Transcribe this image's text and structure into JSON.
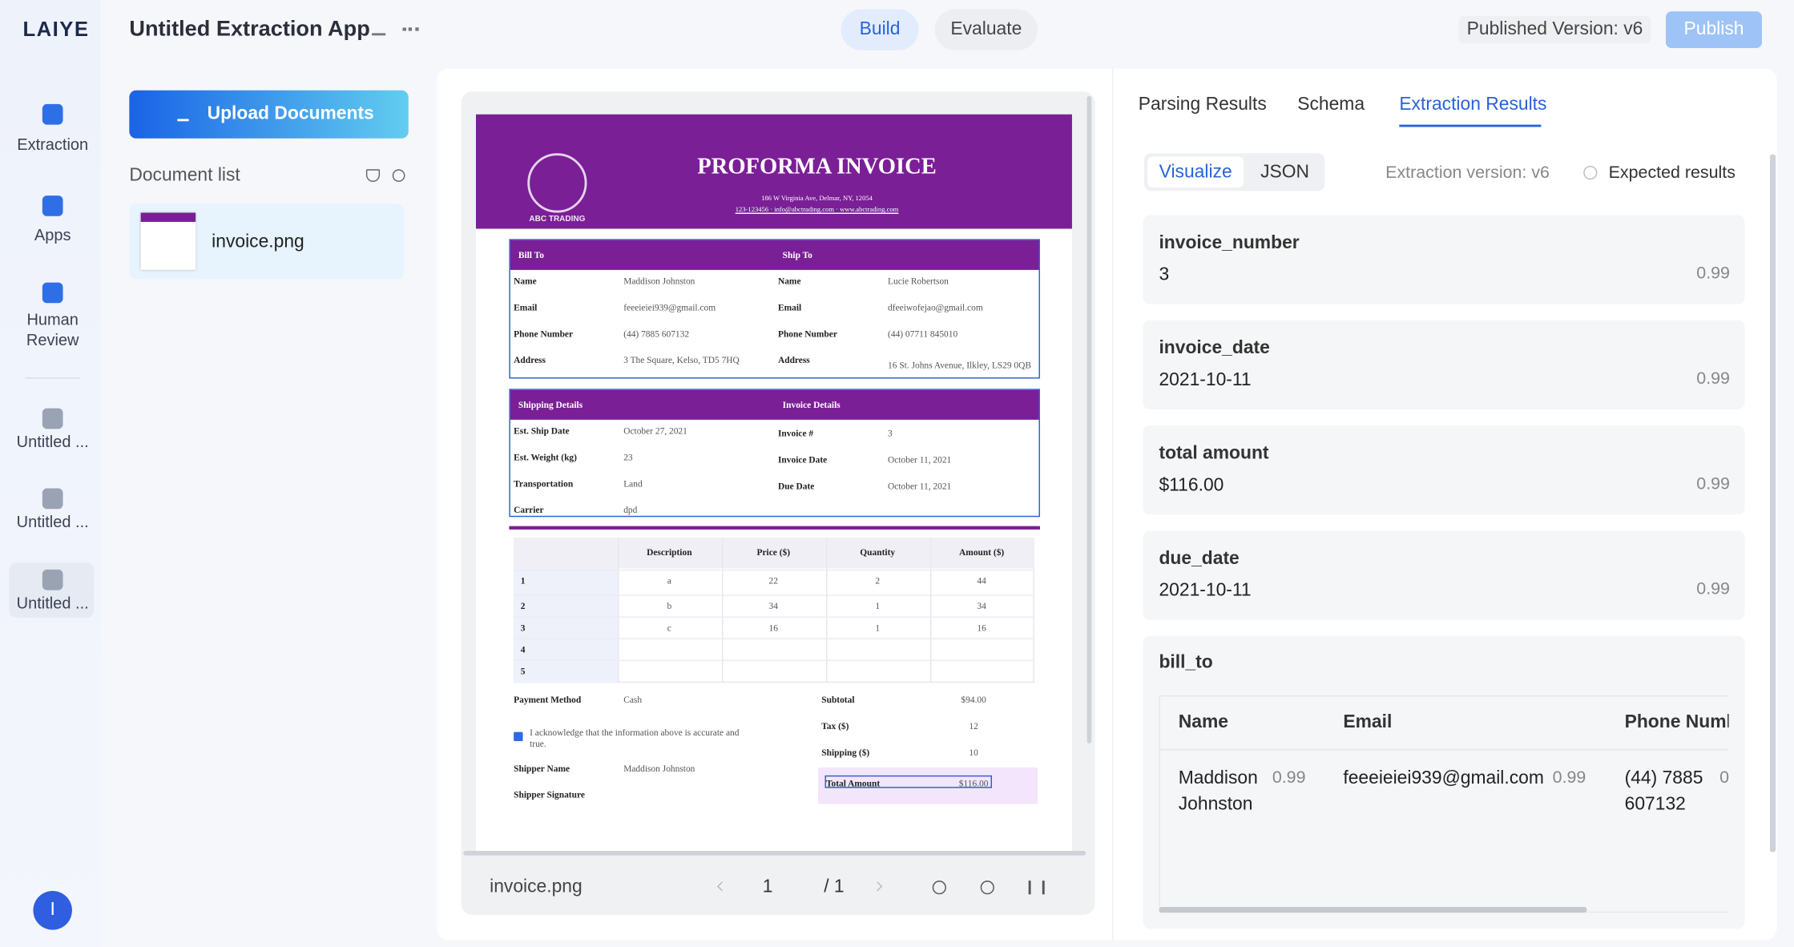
{
  "sidebar": {
    "logo": "LAIYE",
    "nav": [
      "Extraction",
      "Apps",
      "Human Review",
      "Untitled ...",
      "Untitled ...",
      "Untitled ..."
    ],
    "avatar": "I"
  },
  "header": {
    "title": "Untitled Extraction App",
    "tabs": [
      "Build",
      "Evaluate"
    ],
    "published_version": "Published Version: v6",
    "publish": "Publish"
  },
  "documents": {
    "upload": "Upload Documents",
    "list_title": "Document list",
    "items": [
      "invoice.png"
    ]
  },
  "viewer": {
    "filename": "invoice.png",
    "page": "1",
    "total": "/ 1"
  },
  "invoice": {
    "logo_text": "ABC TRADING",
    "title": "PROFORMA INVOICE",
    "address": "186 W Virginia Ave, Delmar, NY, 12054",
    "contact": "123-123456 · info@abctrading.com · www.abctrading.com",
    "bill_to": {
      "heading": "Bill To",
      "rows": [
        [
          "Name",
          "Maddison Johnston"
        ],
        [
          "Email",
          "feeeieiei939@gmail.com"
        ],
        [
          "Phone Number",
          "(44) 7885 607132"
        ],
        [
          "Address",
          "3 The Square, Kelso, TD5 7HQ"
        ]
      ]
    },
    "ship_to": {
      "heading": "Ship To",
      "rows": [
        [
          "Name",
          "Lucie Robertson"
        ],
        [
          "Email",
          "dfeeiwofejao@gmail.com"
        ],
        [
          "Phone Number",
          "(44) 07711 845010"
        ],
        [
          "Address",
          "16 St. Johns Avenue, Ilkley, LS29 0QB"
        ]
      ]
    },
    "shipping": {
      "heading": "Shipping Details",
      "rows": [
        [
          "Est. Ship Date",
          "October 27, 2021"
        ],
        [
          "Est. Weight (kg)",
          "23"
        ],
        [
          "Transportation",
          "Land"
        ],
        [
          "Carrier",
          "dpd"
        ]
      ]
    },
    "details": {
      "heading": "Invoice Details",
      "rows": [
        [
          "Invoice #",
          "3"
        ],
        [
          "Invoice Date",
          "October 11, 2021"
        ],
        [
          "Due Date",
          "October 11, 2021"
        ]
      ]
    },
    "items": {
      "columns": [
        "Description",
        "Price ($)",
        "Quantity",
        "Amount ($)"
      ],
      "rows": [
        [
          "1",
          "a",
          "22",
          "2",
          "44"
        ],
        [
          "2",
          "b",
          "34",
          "1",
          "34"
        ],
        [
          "3",
          "c",
          "16",
          "1",
          "16"
        ],
        [
          "4"
        ],
        [
          "5"
        ]
      ]
    },
    "payment": [
      "Payment Method",
      "Cash"
    ],
    "acknowledgement": "I acknowledge that the information above is accurate and true.",
    "shipper_name": [
      "Shipper Name",
      "Maddison Johnston"
    ],
    "shipper_signature": "Shipper Signature",
    "totals": [
      [
        "Subtotal",
        "$94.00"
      ],
      [
        "Tax ($)",
        "12"
      ],
      [
        "Shipping ($)",
        "10"
      ],
      [
        "Total Amount",
        "$116.00"
      ]
    ]
  },
  "results": {
    "tabs": [
      "Parsing Results",
      "Schema",
      "Extraction Results"
    ],
    "view_tabs": [
      "Visualize",
      "JSON"
    ],
    "version": "Extraction version: v6",
    "expected": "Expected results",
    "fields": [
      {
        "name": "invoice_number",
        "value": "3",
        "score": "0.99"
      },
      {
        "name": "invoice_date",
        "value": "2021-10-11",
        "score": "0.99"
      },
      {
        "name": "total amount",
        "value": "$116.00",
        "score": "0.99"
      },
      {
        "name": "due_date",
        "value": "2021-10-11",
        "score": "0.99"
      }
    ],
    "bill_to": {
      "name": "bill_to",
      "columns": [
        "Name",
        "Email",
        "Phone Numl"
      ],
      "row": [
        {
          "value": "Maddison Johnston",
          "score": "0.99"
        },
        {
          "value": "feeeieiei939@gmail.com",
          "score": "0.99"
        },
        {
          "value": "(44) 7885 607132",
          "score": "0"
        }
      ]
    }
  }
}
